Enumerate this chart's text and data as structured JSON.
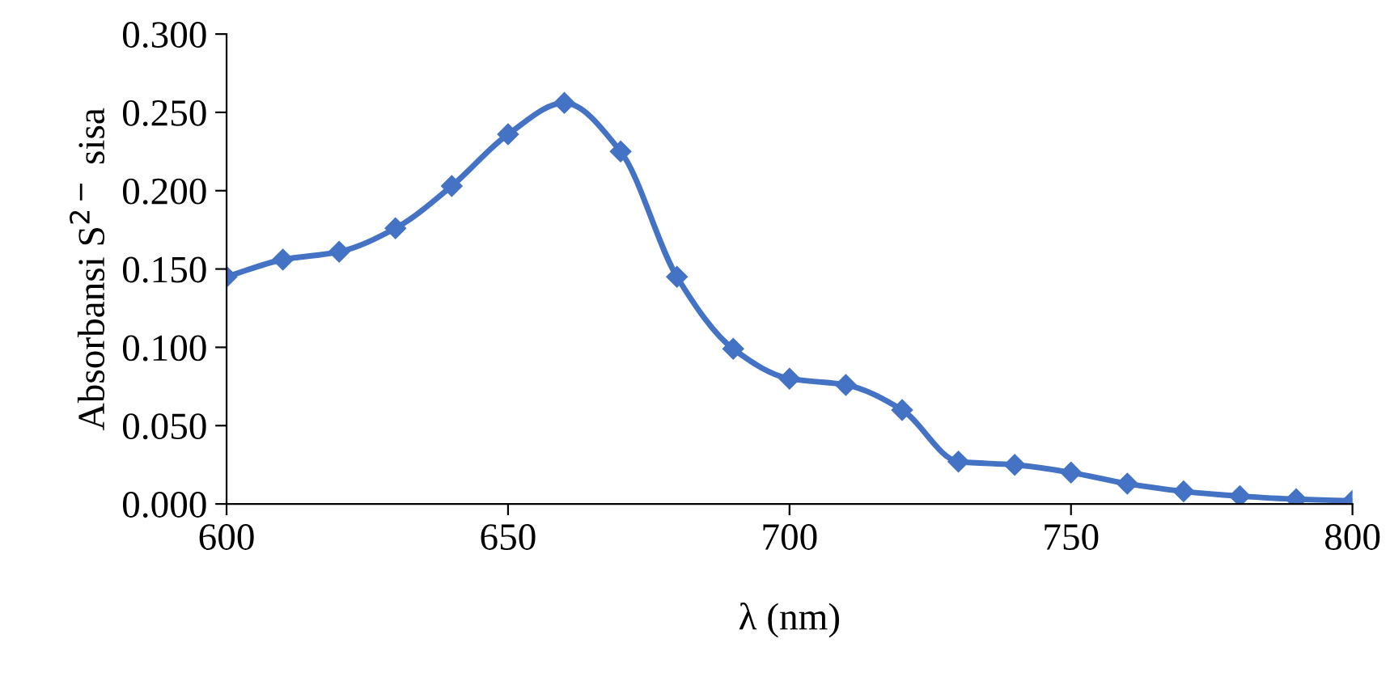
{
  "chart_data": {
    "type": "line",
    "xlabel": "λ (nm)",
    "ylabel": "Absorbansi S$^{2−}$ sisa",
    "x": [
      600,
      610,
      620,
      630,
      640,
      650,
      660,
      670,
      680,
      690,
      700,
      710,
      720,
      730,
      740,
      750,
      760,
      770,
      780,
      790,
      800
    ],
    "series": [
      {
        "color": "#4472c4",
        "values": [
          0.145,
          0.156,
          0.161,
          0.176,
          0.203,
          0.236,
          0.256,
          0.225,
          0.145,
          0.099,
          0.08,
          0.076,
          0.06,
          0.027,
          0.025,
          0.02,
          0.013,
          0.008,
          0.005,
          0.003,
          0.002
        ]
      }
    ],
    "xlim": [
      600,
      800
    ],
    "xticks": [
      600,
      650,
      700,
      750,
      800
    ],
    "ylim": [
      0,
      0.3
    ],
    "yticks": [
      {
        "value": 0,
        "label": "0.000"
      },
      {
        "value": 0.05,
        "label": "0.050"
      },
      {
        "value": 0.1,
        "label": "0.100"
      },
      {
        "value": 0.15,
        "label": "0.150"
      },
      {
        "value": 0.2,
        "label": "0.200"
      },
      {
        "value": 0.25,
        "label": "0.250"
      },
      {
        "value": 0.3,
        "label": "0.300"
      }
    ],
    "marker": "diamond",
    "line_style": "solid",
    "grid": false,
    "legend": false
  }
}
